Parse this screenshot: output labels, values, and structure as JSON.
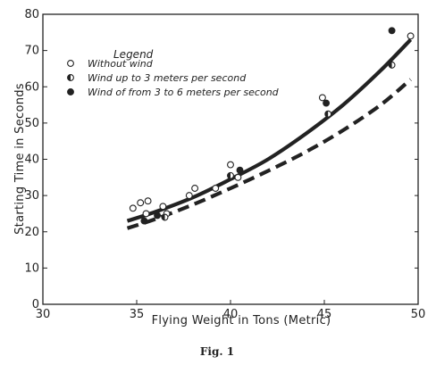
{
  "chart_data": {
    "type": "scatter",
    "xlabel": "Flying Weight in Tons (Metric)",
    "ylabel": "Starting Time in Seconds",
    "xlim": [
      30,
      50
    ],
    "ylim": [
      0,
      80
    ],
    "x_ticks": [
      30,
      35,
      40,
      45,
      50
    ],
    "y_ticks": [
      0,
      10,
      20,
      30,
      40,
      50,
      60,
      70,
      80
    ],
    "grid": false,
    "legend_title": "Legend",
    "legend_position": "top-left",
    "series": [
      {
        "name": "Without wind",
        "marker": "open-circle",
        "points": [
          {
            "x": 34.8,
            "y": 26.5
          },
          {
            "x": 35.2,
            "y": 28
          },
          {
            "x": 35.6,
            "y": 28.5
          },
          {
            "x": 35.5,
            "y": 25
          },
          {
            "x": 36.4,
            "y": 27
          },
          {
            "x": 36.6,
            "y": 25
          },
          {
            "x": 37.8,
            "y": 30
          },
          {
            "x": 38.1,
            "y": 32
          },
          {
            "x": 39.2,
            "y": 32
          },
          {
            "x": 40.0,
            "y": 38.5
          },
          {
            "x": 40.4,
            "y": 35
          },
          {
            "x": 44.9,
            "y": 57
          },
          {
            "x": 49.6,
            "y": 74
          }
        ]
      },
      {
        "name": "Wind up to 3 meters per second",
        "marker": "half-filled-circle",
        "points": [
          {
            "x": 36.5,
            "y": 24
          },
          {
            "x": 40.0,
            "y": 35.5
          },
          {
            "x": 45.2,
            "y": 52.5
          },
          {
            "x": 48.6,
            "y": 66
          }
        ]
      },
      {
        "name": "Wind of from 3 to 6 meters per second",
        "marker": "filled-circle",
        "points": [
          {
            "x": 35.4,
            "y": 23
          },
          {
            "x": 36.1,
            "y": 24.5
          },
          {
            "x": 40.5,
            "y": 37
          },
          {
            "x": 45.1,
            "y": 55.5
          },
          {
            "x": 48.6,
            "y": 75.5
          }
        ]
      }
    ],
    "curves": [
      {
        "style": "solid",
        "x": [
          34.5,
          36,
          38,
          40,
          42,
          44,
          46,
          48,
          49.6
        ],
        "y": [
          23,
          25.5,
          29.5,
          34.5,
          40,
          47,
          55,
          64.5,
          73
        ]
      },
      {
        "style": "dashed",
        "x": [
          34.5,
          36,
          38,
          40,
          42,
          44,
          46,
          48,
          49.6
        ],
        "y": [
          21,
          23.5,
          27.5,
          32,
          36.8,
          42,
          48,
          55,
          62
        ]
      }
    ]
  },
  "caption": "Fig. 1",
  "colors": {
    "ink": "#222222",
    "background": "#ffffff"
  }
}
